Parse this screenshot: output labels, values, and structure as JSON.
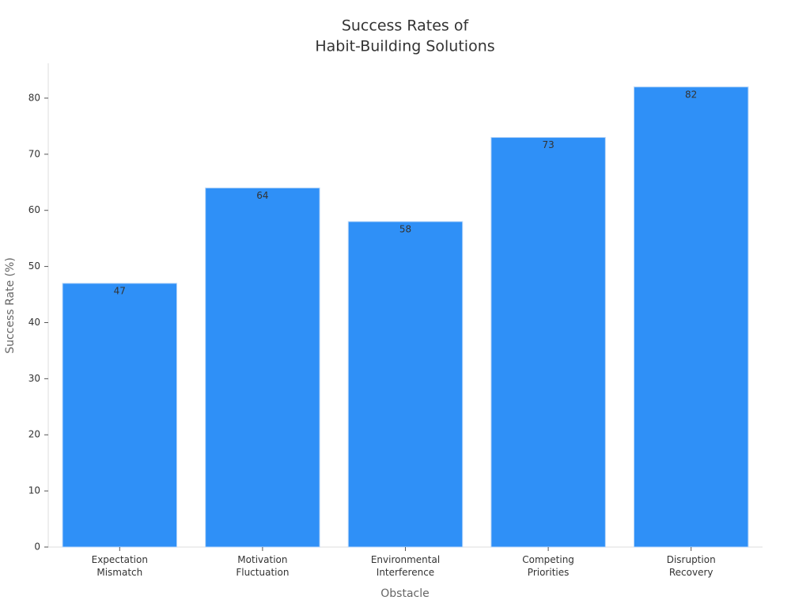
{
  "chart_data": {
    "type": "bar",
    "title": [
      "Success Rates of",
      "Habit-Building Solutions"
    ],
    "xlabel": "Obstacle",
    "ylabel": "Success Rate (%)",
    "categories": [
      "Expectation Mismatch",
      "Motivation Fluctuation",
      "Environmental Interference",
      "Competing Priorities",
      "Disruption Recovery"
    ],
    "values": [
      47,
      64,
      58,
      73,
      82
    ],
    "color": "#2f90f7",
    "ylim": [
      0,
      86.2
    ],
    "yticks": [
      0,
      10,
      20,
      30,
      40,
      50,
      60,
      70,
      80
    ],
    "grid": false
  }
}
